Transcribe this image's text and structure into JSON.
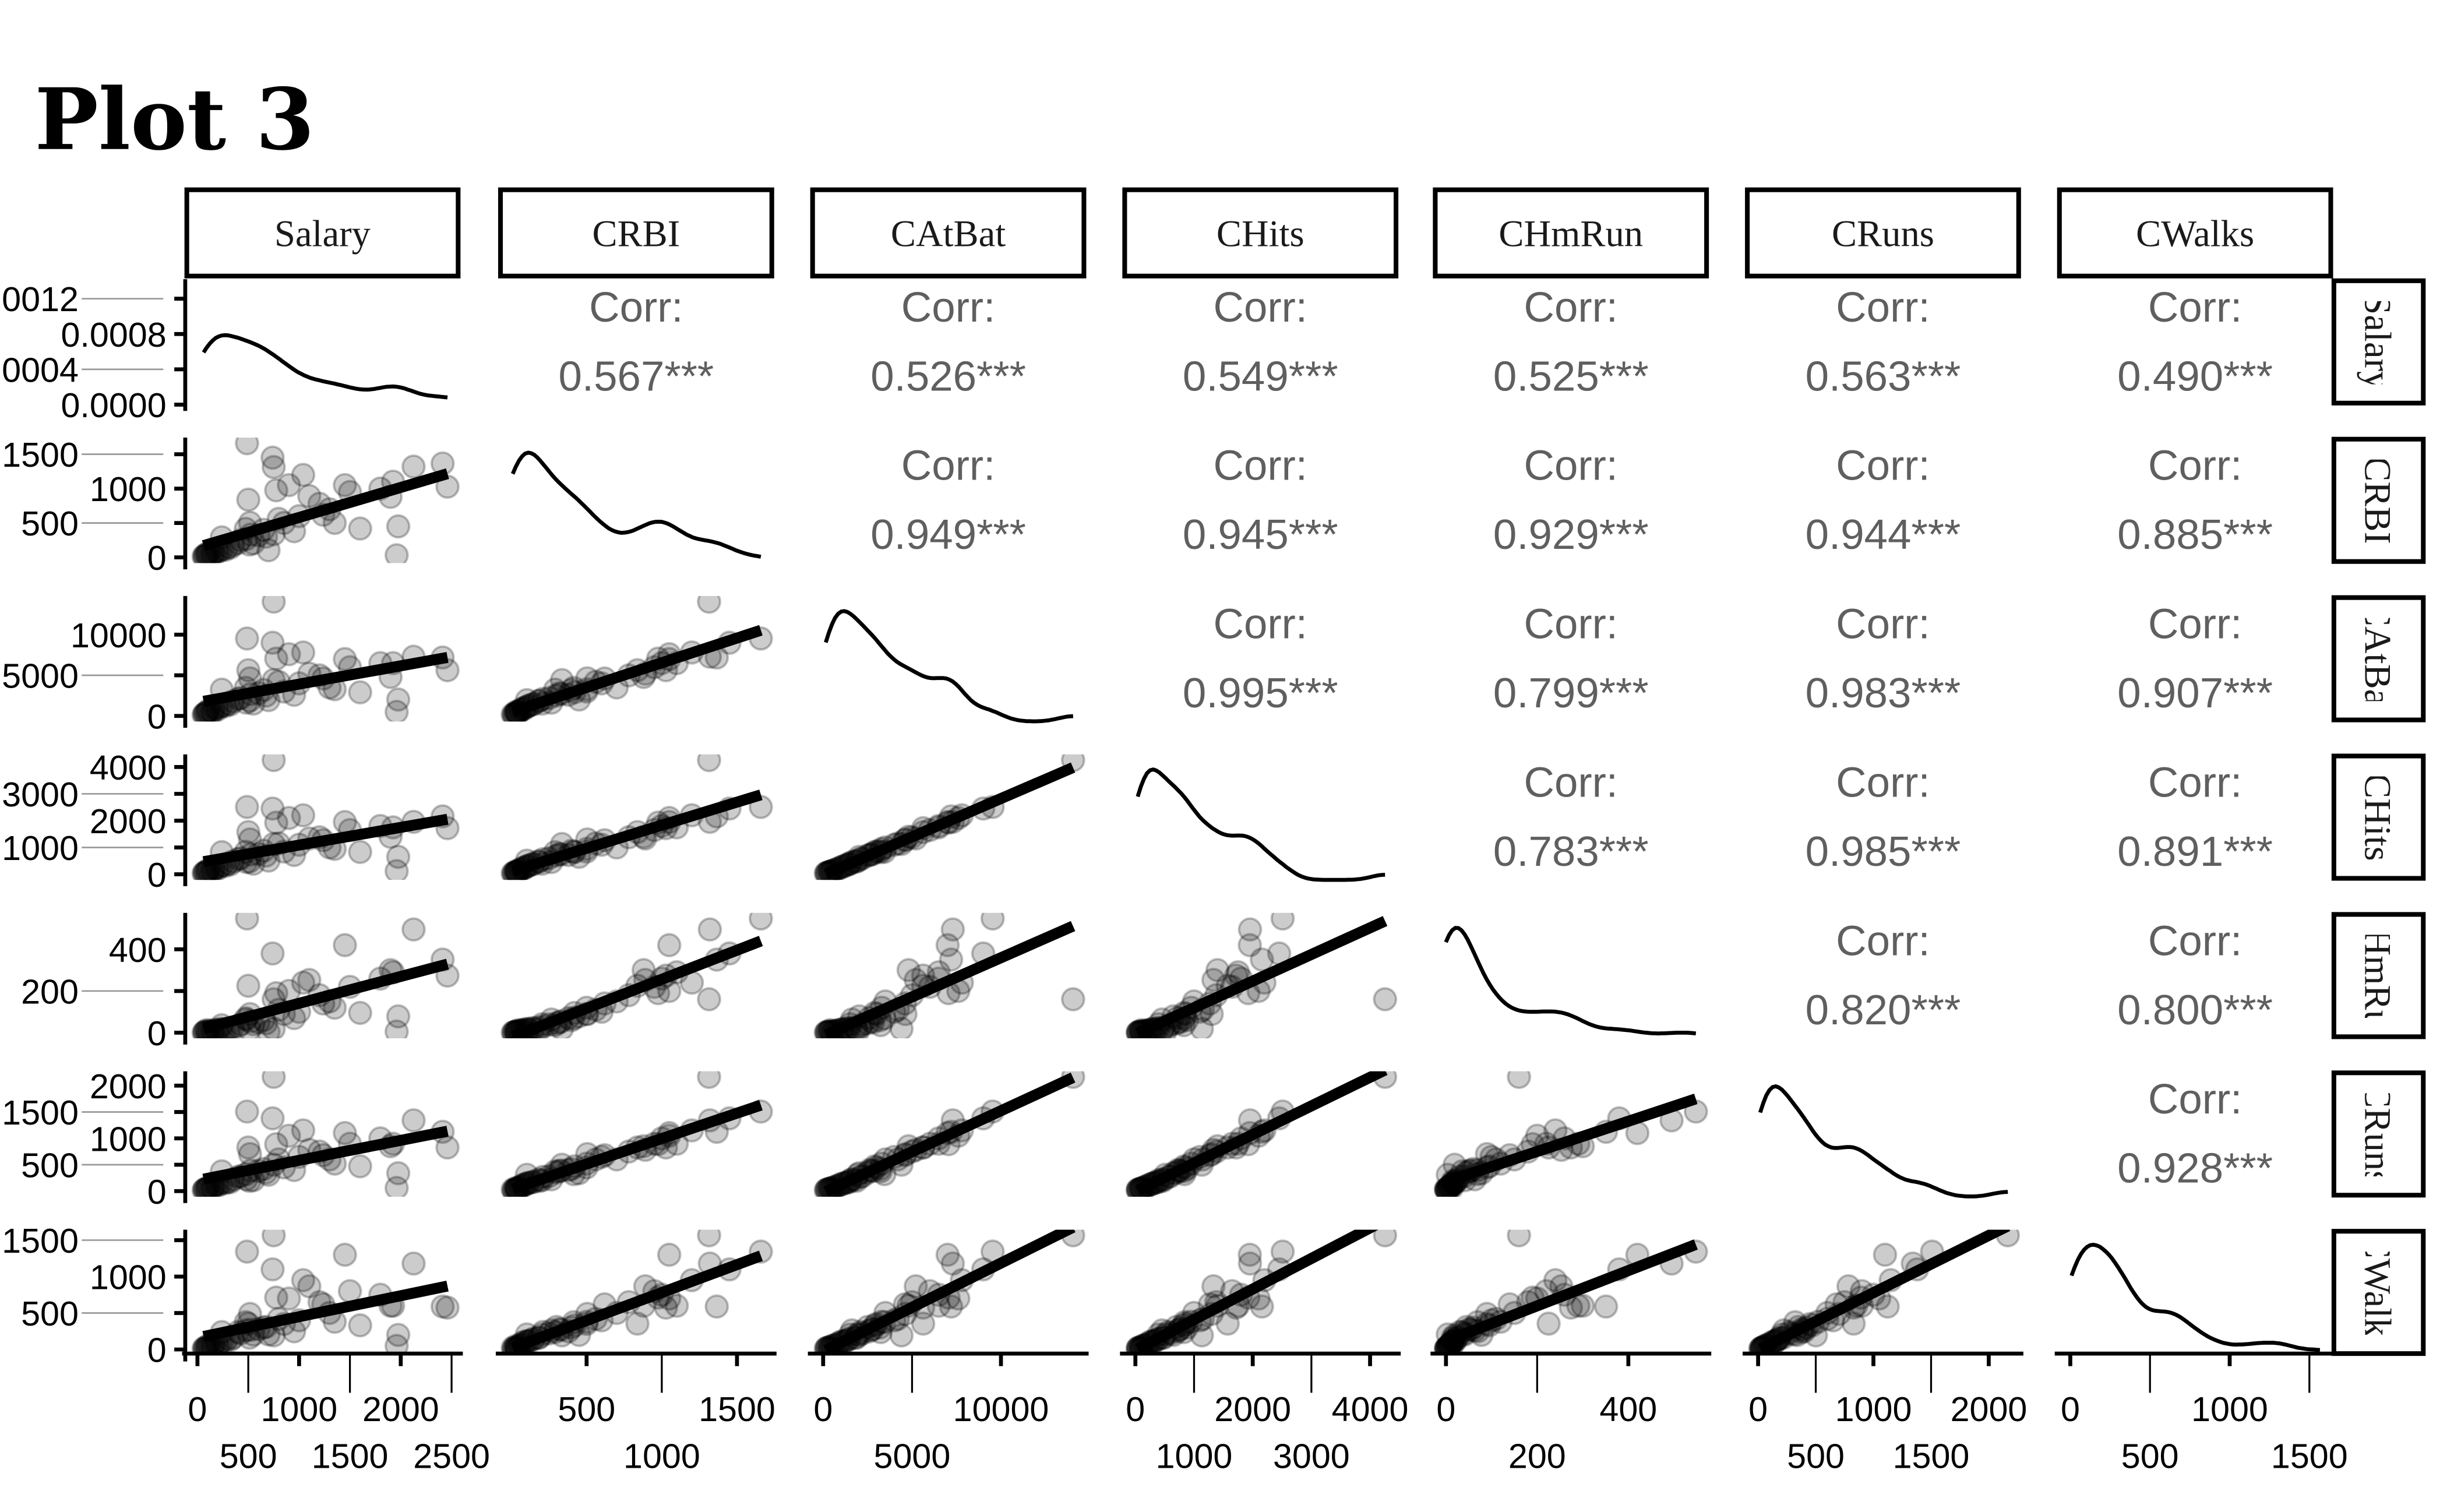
{
  "title": "Plot 3",
  "chart_data": {
    "type": "scatter-matrix",
    "title": "Plot 3",
    "variables": [
      "Salary",
      "CRBI",
      "CAtBat",
      "CHits",
      "CHmRun",
      "CRuns",
      "CWalks"
    ],
    "ranges": {
      "Salary": [
        -120,
        2580
      ],
      "CRBI": [
        -83,
        1742
      ],
      "CAtBat": [
        -682,
        14754
      ],
      "CHits": [
        -209,
        4469
      ],
      "CHmRun": [
        -27,
        575
      ],
      "CRuns": [
        -107,
        2273
      ],
      "CWalks": [
        -78,
        1644
      ]
    },
    "x_ticks": {
      "Salary": [
        0,
        500,
        1000,
        1500,
        2000,
        2500
      ],
      "CRBI": [
        500,
        1000,
        1500
      ],
      "CAtBat": [
        0,
        5000,
        10000
      ],
      "CHits": [
        0,
        1000,
        2000,
        3000,
        4000
      ],
      "CHmRun": [
        0,
        200,
        400
      ],
      "CRuns": [
        0,
        500,
        1000,
        1500,
        2000
      ],
      "CWalks": [
        0,
        500,
        1000,
        1500
      ]
    },
    "y_ticks": {
      "density": [
        "0.0000",
        "0.0004",
        "0.0008",
        "0.0012"
      ],
      "CRBI": [
        0,
        500,
        1000,
        1500
      ],
      "CAtBat": [
        0,
        5000,
        10000
      ],
      "CHits": [
        0,
        1000,
        2000,
        3000,
        4000
      ],
      "CHmRun": [
        0,
        200,
        400
      ],
      "CRuns": [
        0,
        500,
        1000,
        1500,
        2000
      ],
      "CWalks": [
        0,
        500,
        1000,
        1500
      ]
    },
    "density_ylim": [
      0,
      0.00135
    ],
    "corr_label": "Corr:",
    "correlations": {
      "CRBI|Salary": "0.567***",
      "CAtBat|Salary": "0.526***",
      "CHits|Salary": "0.549***",
      "CHmRun|Salary": "0.525***",
      "CRuns|Salary": "0.563***",
      "CWalks|Salary": "0.490***",
      "CAtBat|CRBI": "0.949***",
      "CHits|CRBI": "0.945***",
      "CHmRun|CRBI": "0.929***",
      "CRuns|CRBI": "0.944***",
      "CWalks|CRBI": "0.885***",
      "CHits|CAtBat": "0.995***",
      "CHmRun|CAtBat": "0.799***",
      "CRuns|CAtBat": "0.983***",
      "CWalks|CAtBat": "0.907***",
      "CHmRun|CHits": "0.783***",
      "CRuns|CHits": "0.985***",
      "CWalks|CHits": "0.891***",
      "CRuns|CHmRun": "0.820***",
      "CWalks|CHmRun": "0.800***",
      "CWalks|CRuns": "0.928***"
    },
    "observations_columns": [
      "Salary",
      "CRBI",
      "CAtBat",
      "CHits",
      "CHmRun",
      "CRuns",
      "CWalks"
    ],
    "observations": [
      [
        475,
        414,
        3449,
        835,
        69,
        321,
        375
      ],
      [
        480,
        266,
        1624,
        457,
        63,
        224,
        263
      ],
      [
        500,
        838,
        5628,
        1575,
        225,
        828,
        354
      ],
      [
        91.5,
        46,
        396,
        101,
        12,
        48,
        33
      ],
      [
        750,
        336,
        4408,
        1133,
        19,
        501,
        194
      ],
      [
        70,
        9,
        214,
        42,
        1,
        30,
        24
      ],
      [
        100,
        37,
        509,
        108,
        0,
        41,
        12
      ],
      [
        75,
        34,
        341,
        86,
        6,
        32,
        8
      ],
      [
        1100,
        890,
        5206,
        1332,
        253,
        784,
        866
      ],
      [
        517,
        504,
        4631,
        1300,
        90,
        702,
        488
      ],
      [
        512,
        186,
        1876,
        467,
        15,
        192,
        161
      ],
      [
        550,
        204,
        1512,
        392,
        41,
        205,
        203
      ],
      [
        700,
        103,
        1941,
        510,
        4,
        309,
        207
      ],
      [
        240,
        290,
        3231,
        825,
        36,
        376,
        238
      ],
      [
        775,
        976,
        7058,
        1924,
        190,
        891,
        713
      ],
      [
        487.5,
        1659,
        9528,
        2510,
        548,
        1509,
        1342
      ],
      [
        750,
        1314,
        14053,
        4256,
        160,
        2165,
        1566
      ],
      [
        2460,
        1028,
        5624,
        1718,
        274,
        828,
        574
      ],
      [
        2412,
        1366,
        7194,
        2158,
        351,
        1124,
        589
      ],
      [
        2127,
        1320,
        7292,
        1954,
        495,
        1342,
        1180
      ],
      [
        1925,
        1100,
        6500,
        1750,
        290,
        900,
        600
      ],
      [
        1975,
        450,
        2028,
        650,
        78,
        340,
        200
      ],
      [
        1900,
        880,
        4800,
        1400,
        300,
        850,
        600
      ],
      [
        1300,
        700,
        3500,
        1000,
        150,
        600,
        500
      ],
      [
        1000,
        600,
        4000,
        1100,
        100,
        650,
        400
      ],
      [
        850,
        500,
        3000,
        850,
        90,
        450,
        350
      ],
      [
        900,
        1050,
        7600,
        2100,
        200,
        1050,
        700
      ],
      [
        650,
        400,
        3200,
        880,
        60,
        420,
        300
      ],
      [
        300,
        150,
        1500,
        400,
        20,
        180,
        150
      ],
      [
        200,
        80,
        800,
        200,
        10,
        100,
        70
      ],
      [
        150,
        40,
        400,
        95,
        5,
        50,
        30
      ],
      [
        120,
        30,
        300,
        70,
        2,
        35,
        25
      ],
      [
        90,
        20,
        200,
        50,
        3,
        25,
        15
      ],
      [
        110,
        60,
        700,
        170,
        8,
        80,
        60
      ],
      [
        425,
        250,
        2200,
        600,
        40,
        280,
        220
      ],
      [
        350,
        180,
        1800,
        480,
        25,
        220,
        160
      ],
      [
        600,
        320,
        2800,
        760,
        50,
        380,
        280
      ],
      [
        800,
        560,
        4200,
        1150,
        110,
        600,
        420
      ],
      [
        1200,
        780,
        5000,
        1380,
        180,
        750,
        650
      ],
      [
        1500,
        950,
        6000,
        1650,
        220,
        900,
        800
      ],
      [
        1040,
        1200,
        7800,
        2200,
        240,
        1150,
        950
      ],
      [
        675,
        300,
        2500,
        700,
        45,
        350,
        310
      ],
      [
        400,
        210,
        2100,
        560,
        30,
        270,
        240
      ],
      [
        250,
        120,
        1300,
        340,
        15,
        160,
        120
      ],
      [
        1350,
        500,
        3300,
        950,
        120,
        520,
        380
      ],
      [
        1600,
        420,
        2900,
        830,
        95,
        470,
        330
      ],
      [
        1800,
        1000,
        6500,
        1800,
        260,
        1000,
        750
      ],
      [
        1960,
        30,
        500,
        120,
        5,
        60,
        50
      ],
      [
        165,
        70,
        900,
        230,
        12,
        110,
        90
      ],
      [
        190,
        90,
        1000,
        260,
        14,
        130,
        110
      ],
      [
        950,
        380,
        2600,
        720,
        70,
        400,
        250
      ],
      [
        525,
        330,
        2700,
        740,
        55,
        390,
        270
      ],
      [
        1237,
        620,
        4600,
        1270,
        140,
        680,
        620
      ],
      [
        225,
        100,
        1100,
        290,
        18,
        140,
        100
      ],
      [
        60,
        15,
        150,
        40,
        1,
        18,
        10
      ],
      [
        140,
        55,
        600,
        150,
        7,
        70,
        55
      ],
      [
        740,
        1450,
        9000,
        2450,
        380,
        1380,
        1100
      ],
      [
        1450,
        1050,
        7000,
        1950,
        420,
        1100,
        1300
      ],
      [
        325,
        140,
        1400,
        370,
        22,
        170,
        130
      ],
      [
        275,
        110,
        1200,
        310,
        16,
        150,
        115
      ]
    ],
    "lower": "points with linear fit",
    "diagonal": "density",
    "upper": "correlation"
  }
}
